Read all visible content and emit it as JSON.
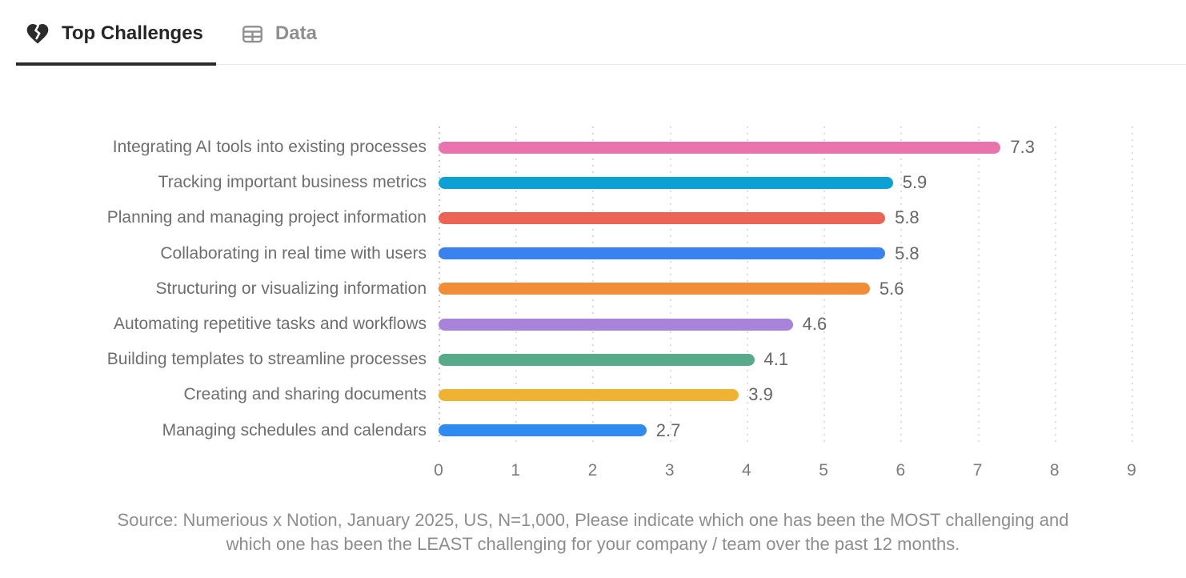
{
  "tabs": [
    {
      "label": "Top Challenges",
      "icon": "broken-heart",
      "active": true
    },
    {
      "label": "Data",
      "icon": "table",
      "active": false
    }
  ],
  "chart_data": {
    "type": "bar",
    "orientation": "horizontal",
    "categories": [
      "Integrating AI tools into existing processes",
      "Tracking important business metrics",
      "Planning and managing project information",
      "Collaborating in real time with users",
      "Structuring or visualizing information",
      "Automating repetitive tasks and workflows",
      "Building templates to streamline processes",
      "Creating and sharing documents",
      "Managing schedules and calendars"
    ],
    "values": [
      7.3,
      5.9,
      5.8,
      5.8,
      5.6,
      4.6,
      4.1,
      3.9,
      2.7
    ],
    "bar_colors": [
      "#e873ad",
      "#0ba1d4",
      "#ec6456",
      "#3b82f1",
      "#f08d36",
      "#a784da",
      "#58ab8a",
      "#efb334",
      "#2e8bf0"
    ],
    "xlim": [
      0,
      9
    ],
    "x_ticks": [
      0,
      1,
      2,
      3,
      4,
      5,
      6,
      7,
      8,
      9
    ],
    "grid": "vertical-dotted",
    "legend": "none",
    "value_label_style": "end-of-bar, one decimal",
    "title": ""
  },
  "source": {
    "line1": "Source: Numerious x Notion, January 2025, US, N=1,000, Please indicate which one has been the MOST challenging and",
    "line2": "which one has been the LEAST challenging for your company /  team over the past 12 months."
  },
  "colors": {
    "background": "#ffffff",
    "tab_active_text": "#262626",
    "tab_inactive_text": "#8f8f8f",
    "active_underline": "#2b2b2b",
    "tab_divider": "#e8e8e8",
    "category_label": "#6e6e6e",
    "value_label": "#666666",
    "tick_label": "#7b7b7b",
    "source_text": "#8d8d8d",
    "gridline": "#dcdcdc",
    "axis_line": "#c9c9c9"
  }
}
